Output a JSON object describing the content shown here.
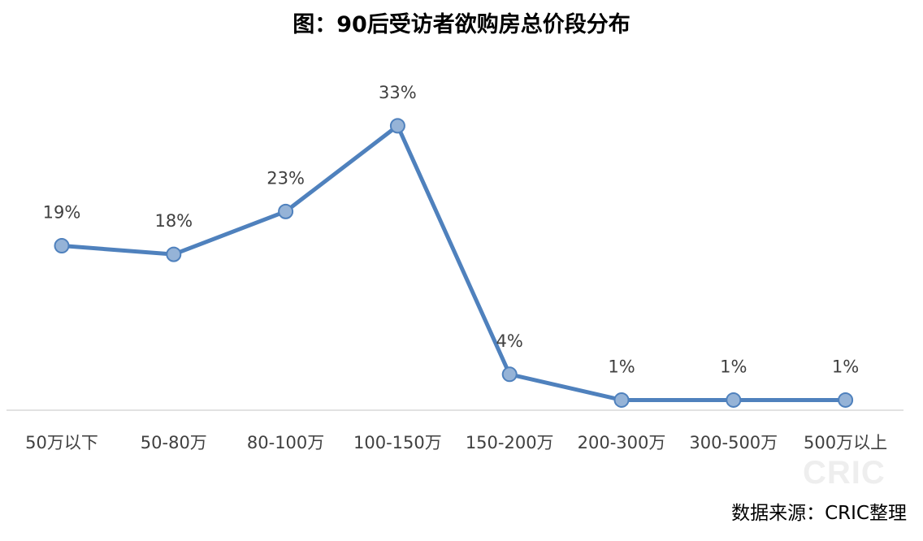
{
  "title": "图：90后受访者欲购房总价段分布",
  "source": "数据来源：CRIC整理",
  "watermark": "CRIC",
  "colors": {
    "line": "#4F81BD",
    "marker_fill": "#95B3D7",
    "axis": "#D9D9D9",
    "text": "#404040"
  },
  "chart_data": {
    "type": "line",
    "title": "图：90后受访者欲购房总价段分布",
    "categories": [
      "50万以下",
      "50-80万",
      "80-100万",
      "100-150万",
      "150-200万",
      "200-300万",
      "300-500万",
      "500万以上"
    ],
    "series": [
      {
        "values": [
          19,
          18,
          23,
          33,
          4,
          1,
          1,
          1
        ],
        "labels": [
          "19%",
          "18%",
          "23%",
          "33%",
          "4%",
          "1%",
          "1%",
          "1%"
        ]
      }
    ],
    "unit": "%",
    "grid": false,
    "legend": "none"
  }
}
